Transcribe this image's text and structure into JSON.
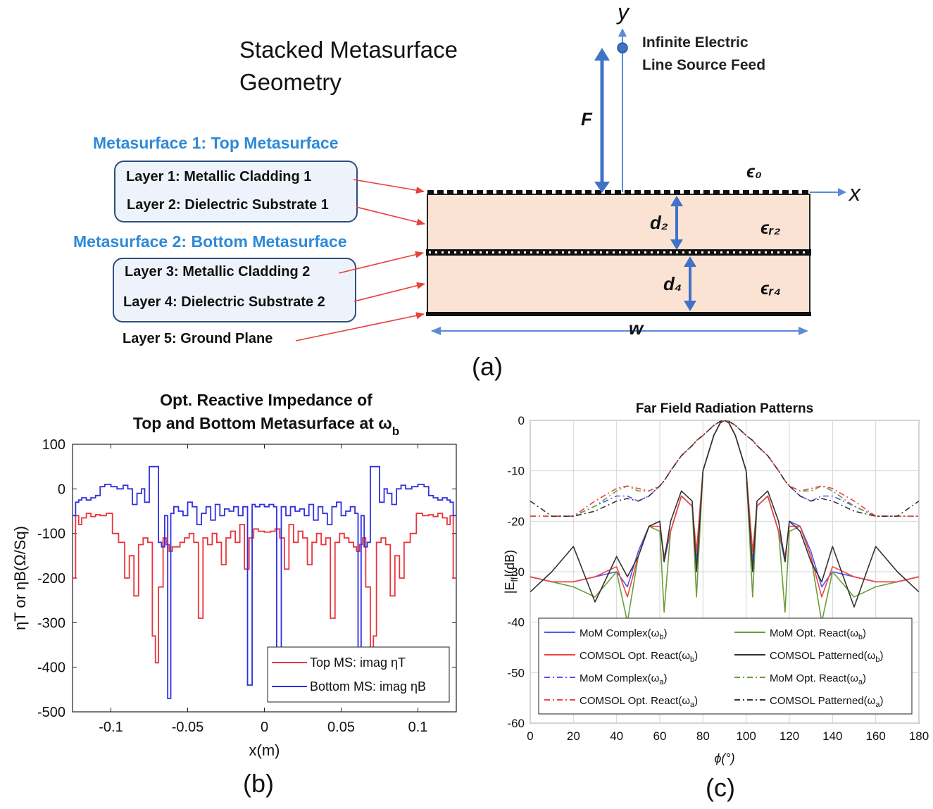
{
  "panel_a": {
    "title_line1": "Stacked Metasurface",
    "title_line2": "Geometry",
    "metasurface1_heading": "Metasurface 1: Top Metasurface",
    "metasurface2_heading": "Metasurface 2: Bottom Metasurface",
    "layer1": "Layer 1: Metallic Cladding 1",
    "layer2": "Layer 2: Dielectric Substrate 1",
    "layer3": "Layer 3: Metallic Cladding 2",
    "layer4": "Layer 4: Dielectric Substrate 2",
    "layer5": "Layer 5: Ground Plane",
    "feed_line1": "Infinite Electric",
    "feed_line2": "Line Source Feed",
    "label_F": "F",
    "label_y": "y",
    "label_x": "x",
    "label_d2": "d₂",
    "label_d4": "d₄",
    "label_w": "w",
    "label_eps0": "ϵ₀",
    "label_epsr2": "ϵᵣ₂",
    "label_epsr4": "ϵᵣ₄",
    "caption": "(a)",
    "colors": {
      "heading": "#2e8ad8",
      "arrow": "#3f73c8",
      "substrate": "#fbe3d4",
      "pointer": "#e8403a"
    }
  },
  "panel_b": {
    "caption": "(b)",
    "legend": [
      "Top MS: imag ηT",
      "Bottom MS: imag ηB"
    ],
    "chart_data": {
      "type": "line",
      "title": "Opt. Reactive Impedance of Top and Bottom Metasurface at ωb",
      "title_line1": "Opt. Reactive Impedance of",
      "title_line2": "Top and Bottom Metasurface at ω",
      "title_sub": "b",
      "xlabel": "x(m)",
      "ylabel": "ηT or ηB(Ω/Sq)",
      "xlim": [
        -0.125,
        0.125
      ],
      "ylim": [
        -500,
        100
      ],
      "xticks": [
        -0.1,
        -0.05,
        0,
        0.05,
        0.1
      ],
      "xtick_labels": [
        "-0.1",
        "-0.05",
        "0",
        "0.05",
        "0.1"
      ],
      "yticks": [
        100,
        0,
        -100,
        -200,
        -300,
        -400,
        -500
      ],
      "ytick_labels": [
        "100",
        "0",
        "-100",
        "-200",
        "-300",
        "-400",
        "-500"
      ],
      "series": [
        {
          "name": "Top MS: imag ηT",
          "color": "#e8343a",
          "x": [
            -0.125,
            -0.123,
            -0.121,
            -0.119,
            -0.116,
            -0.113,
            -0.11,
            -0.107,
            -0.103,
            -0.099,
            -0.095,
            -0.091,
            -0.088,
            -0.085,
            -0.082,
            -0.079,
            -0.076,
            -0.073,
            -0.071,
            -0.069,
            -0.066,
            -0.064,
            -0.062,
            -0.06,
            -0.058,
            -0.055,
            -0.052,
            -0.049,
            -0.046,
            -0.043,
            -0.04,
            -0.037,
            -0.034,
            -0.031,
            -0.028,
            -0.025,
            -0.022,
            -0.019,
            -0.016,
            -0.013,
            -0.01,
            -0.007,
            -0.004,
            0,
            0.004,
            0.007,
            0.01,
            0.013,
            0.016,
            0.019,
            0.022,
            0.025,
            0.028,
            0.031,
            0.034,
            0.037,
            0.04,
            0.043,
            0.046,
            0.049,
            0.052,
            0.055,
            0.058,
            0.06,
            0.062,
            0.064,
            0.066,
            0.069,
            0.071,
            0.073,
            0.076,
            0.079,
            0.082,
            0.085,
            0.088,
            0.091,
            0.095,
            0.099,
            0.103,
            0.107,
            0.11,
            0.113,
            0.116,
            0.119,
            0.121,
            0.123,
            0.125
          ],
          "values": [
            -200,
            -60,
            -80,
            -65,
            -55,
            -62,
            -58,
            -60,
            -55,
            -100,
            -120,
            -200,
            -150,
            -240,
            -125,
            -110,
            -120,
            -330,
            -390,
            -220,
            -110,
            -125,
            -140,
            -130,
            -130,
            -120,
            -110,
            -100,
            -120,
            -290,
            -110,
            -125,
            -100,
            -120,
            -170,
            -110,
            -95,
            -120,
            -80,
            -180,
            -110,
            -90,
            -95,
            -97,
            -95,
            -90,
            -110,
            -180,
            -80,
            -120,
            -95,
            -110,
            -170,
            -120,
            -100,
            -125,
            -110,
            -290,
            -120,
            -100,
            -110,
            -120,
            -130,
            -140,
            -125,
            -110,
            -220,
            -390,
            -330,
            -120,
            -110,
            -125,
            -240,
            -150,
            -200,
            -120,
            -100,
            -55,
            -60,
            -58,
            -62,
            -55,
            -65,
            -80,
            -60,
            -200,
            -200
          ]
        },
        {
          "name": "Bottom MS: imag ηB",
          "color": "#3030e0",
          "x": [
            -0.125,
            -0.123,
            -0.121,
            -0.119,
            -0.116,
            -0.113,
            -0.11,
            -0.107,
            -0.104,
            -0.1,
            -0.096,
            -0.092,
            -0.089,
            -0.086,
            -0.083,
            -0.08,
            -0.078,
            -0.075,
            -0.072,
            -0.069,
            -0.067,
            -0.065,
            -0.063,
            -0.061,
            -0.059,
            -0.056,
            -0.053,
            -0.05,
            -0.047,
            -0.044,
            -0.041,
            -0.038,
            -0.035,
            -0.032,
            -0.029,
            -0.026,
            -0.023,
            -0.02,
            -0.017,
            -0.014,
            -0.011,
            -0.008,
            -0.006,
            -0.003,
            0,
            0.003,
            0.006,
            0.008,
            0.011,
            0.014,
            0.017,
            0.02,
            0.023,
            0.026,
            0.029,
            0.032,
            0.035,
            0.038,
            0.041,
            0.044,
            0.047,
            0.05,
            0.053,
            0.056,
            0.059,
            0.061,
            0.063,
            0.065,
            0.067,
            0.069,
            0.072,
            0.075,
            0.078,
            0.08,
            0.083,
            0.086,
            0.089,
            0.092,
            0.096,
            0.1,
            0.104,
            0.107,
            0.11,
            0.113,
            0.116,
            0.119,
            0.121,
            0.123,
            0.125
          ],
          "values": [
            -60,
            -30,
            -25,
            -20,
            -25,
            -20,
            -15,
            5,
            10,
            5,
            0,
            8,
            0,
            -35,
            -10,
            0,
            -30,
            50,
            50,
            -120,
            -130,
            -60,
            -470,
            -55,
            -40,
            -50,
            -60,
            -30,
            -40,
            -80,
            -55,
            -40,
            -70,
            -35,
            -60,
            -45,
            -50,
            -40,
            -60,
            -40,
            -440,
            -35,
            -40,
            -35,
            -40,
            -35,
            -40,
            -390,
            -40,
            -60,
            -40,
            -50,
            -45,
            -60,
            -35,
            -70,
            -40,
            -55,
            -80,
            -40,
            -30,
            -60,
            -50,
            -40,
            -55,
            -470,
            -60,
            -130,
            -120,
            50,
            50,
            -30,
            0,
            -10,
            -35,
            0,
            8,
            0,
            5,
            10,
            5,
            -15,
            -20,
            -25,
            -20,
            -25,
            -30,
            -60,
            -60
          ]
        }
      ]
    }
  },
  "panel_c": {
    "caption": "(c)",
    "legend": [
      {
        "main": "MoM Complex(ω",
        "sub": "b",
        "color": "#5555ee",
        "dash": "solid"
      },
      {
        "main": "MoM Opt. React(ω",
        "sub": "b",
        "color": "#6a9e3a",
        "dash": "solid"
      },
      {
        "main": "COMSOL Opt. React(ω",
        "sub": "b",
        "color": "#ee4444",
        "dash": "solid"
      },
      {
        "main": "COMSOL Patterned(ω",
        "sub": "b",
        "color": "#333333",
        "dash": "solid"
      },
      {
        "main": "MoM Complex(ω",
        "sub": "a",
        "color": "#5555ee",
        "dash": "dashdot"
      },
      {
        "main": "MoM Opt. React(ω",
        "sub": "a",
        "color": "#6a9e3a",
        "dash": "dashdot"
      },
      {
        "main": "COMSOL Opt. React(ω",
        "sub": "a",
        "color": "#ee4444",
        "dash": "dashdot"
      },
      {
        "main": "COMSOL Patterned(ω",
        "sub": "a",
        "color": "#333333",
        "dash": "dashdot"
      }
    ],
    "chart_data": {
      "type": "line",
      "title": "Far Field Radiation Patterns",
      "xlabel": "ϕ(°)",
      "ylabel": "|Eff|(dB)",
      "ylabel_main": "|E",
      "ylabel_sub": "ff",
      "ylabel_tail": "|(dB)",
      "xlim": [
        0,
        180
      ],
      "ylim": [
        -60,
        0
      ],
      "xticks": [
        0,
        20,
        40,
        60,
        80,
        100,
        120,
        140,
        160,
        180
      ],
      "yticks": [
        0,
        -10,
        -20,
        -30,
        -40,
        -50,
        -60
      ],
      "x": [
        0,
        10,
        20,
        30,
        40,
        45,
        50,
        55,
        60,
        62,
        65,
        70,
        75,
        77,
        80,
        85,
        88,
        90,
        92,
        95,
        100,
        103,
        105,
        110,
        115,
        118,
        120,
        125,
        130,
        135,
        140,
        150,
        160,
        170,
        180
      ],
      "series": [
        {
          "name": "MoM Complex(ωb)",
          "color": "#5555ee",
          "dash": "solid",
          "values": [
            -31,
            -32,
            -32,
            -31,
            -30,
            -33,
            -26,
            -21,
            -20,
            -28,
            -22,
            -15,
            -17,
            -28,
            -10,
            -3,
            -0.5,
            0,
            -0.5,
            -3,
            -10,
            -28,
            -17,
            -15,
            -22,
            -28,
            -20,
            -21,
            -26,
            -33,
            -30,
            -31,
            -32,
            -32,
            -31
          ]
        },
        {
          "name": "MoM Opt. React(ωb)",
          "color": "#6a9e3a",
          "dash": "solid",
          "values": [
            -31,
            -32,
            -33,
            -35,
            -30,
            -40,
            -27,
            -21,
            -22,
            -38,
            -22,
            -15,
            -17,
            -35,
            -10,
            -3,
            -0.5,
            0,
            -0.5,
            -3,
            -10,
            -35,
            -17,
            -15,
            -22,
            -38,
            -22,
            -21,
            -27,
            -40,
            -30,
            -35,
            -33,
            -32,
            -31
          ]
        },
        {
          "name": "COMSOL Opt. React(ωb)",
          "color": "#ee4444",
          "dash": "solid",
          "values": [
            -31,
            -32,
            -32,
            -31,
            -29,
            -35,
            -27,
            -21,
            -21,
            -27,
            -22,
            -15,
            -17,
            -26,
            -10,
            -3,
            -0.5,
            0,
            -0.5,
            -3,
            -10,
            -26,
            -17,
            -15,
            -22,
            -27,
            -21,
            -21,
            -27,
            -35,
            -29,
            -31,
            -32,
            -32,
            -31
          ]
        },
        {
          "name": "COMSOL Patterned(ωb)",
          "color": "#333333",
          "dash": "solid",
          "values": [
            -34,
            -30,
            -25,
            -36,
            -27,
            -31,
            -27,
            -21,
            -20,
            -28,
            -20,
            -14,
            -16,
            -30,
            -10,
            -3,
            -0.5,
            0,
            -0.5,
            -3,
            -10,
            -30,
            -16,
            -14,
            -20,
            -28,
            -20,
            -22,
            -28,
            -32,
            -25,
            -37,
            -25,
            -30,
            -34
          ]
        },
        {
          "name": "MoM Complex(ωa)",
          "color": "#5555ee",
          "dash": "dashdot",
          "values": [
            -19,
            -19,
            -19,
            -17,
            -15,
            -15,
            -16,
            -15,
            -13,
            -12,
            -10,
            -7,
            -5,
            -4,
            -3,
            -1,
            -0.2,
            0,
            -0.2,
            -1,
            -3,
            -4,
            -5,
            -7,
            -10,
            -12,
            -13,
            -15,
            -16,
            -15,
            -15,
            -17,
            -19,
            -19,
            -19
          ]
        },
        {
          "name": "MoM Opt. React(ωa)",
          "color": "#6a9e3a",
          "dash": "dashdot",
          "values": [
            -19,
            -19,
            -19,
            -17,
            -14,
            -13,
            -14,
            -14,
            -13,
            -12,
            -10,
            -7,
            -5,
            -4,
            -3,
            -1,
            -0.2,
            0,
            -0.2,
            -1,
            -3,
            -4,
            -5,
            -7,
            -10,
            -12,
            -13,
            -14,
            -14,
            -13,
            -14,
            -17,
            -19,
            -19,
            -19
          ]
        },
        {
          "name": "COMSOL Opt. React(ωa)",
          "color": "#ee4444",
          "dash": "dashdot",
          "values": [
            -19,
            -19,
            -19,
            -16,
            -13.5,
            -13,
            -13.5,
            -14,
            -13,
            -12,
            -10,
            -7,
            -5,
            -4,
            -3,
            -1,
            -0.2,
            0,
            -0.2,
            -1,
            -3,
            -4,
            -5,
            -7,
            -10,
            -12,
            -13,
            -14,
            -13.5,
            -13,
            -13.5,
            -16,
            -19,
            -19,
            -19
          ]
        },
        {
          "name": "COMSOL Patterned(ωa)",
          "color": "#333333",
          "dash": "dashdot",
          "values": [
            -16,
            -19,
            -19,
            -18,
            -16,
            -15.5,
            -16,
            -15,
            -13,
            -12,
            -10,
            -7,
            -5,
            -4,
            -3,
            -1,
            -0.2,
            0,
            -0.2,
            -1,
            -3,
            -4,
            -5,
            -7,
            -10,
            -12,
            -13,
            -15,
            -16,
            -15.5,
            -16,
            -18,
            -19,
            -19,
            -16
          ]
        }
      ]
    }
  }
}
